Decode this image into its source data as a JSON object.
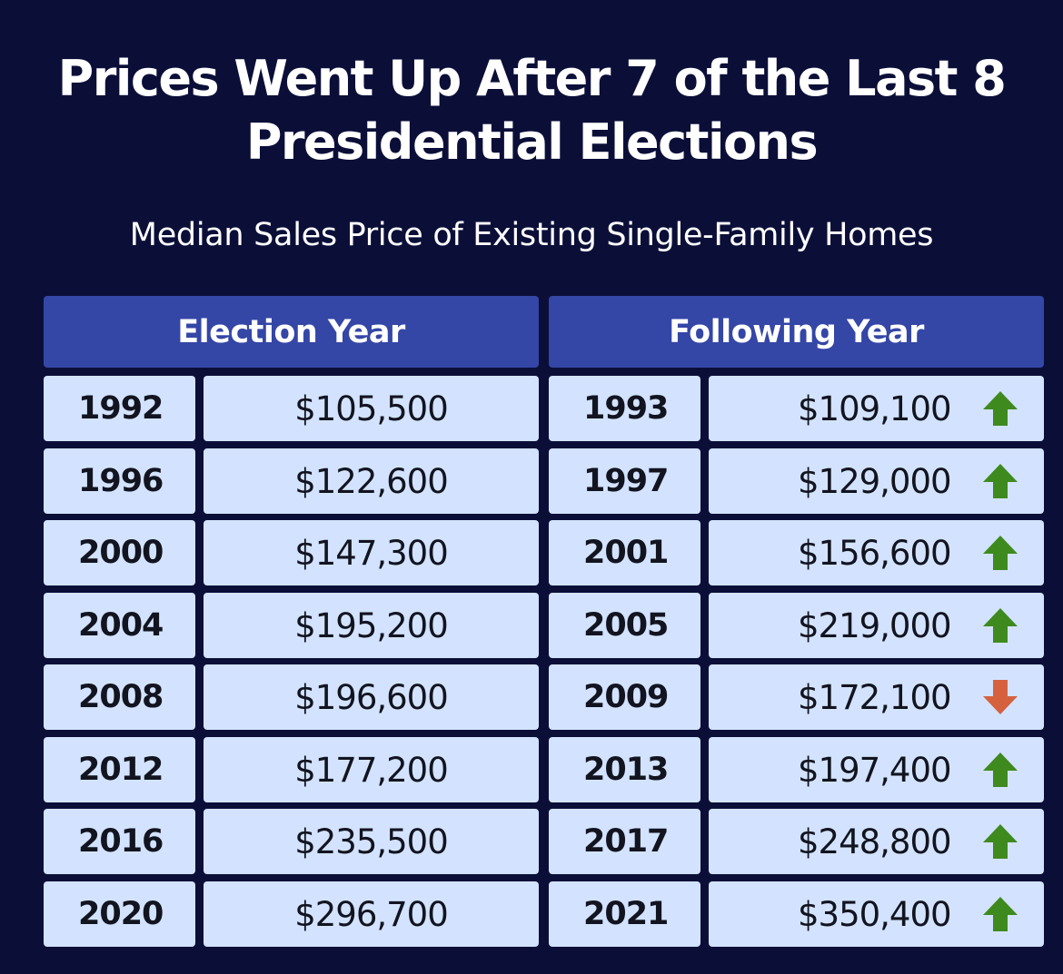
{
  "chart_data": {
    "type": "table",
    "title": "Prices Went Up After 7 of the Last 8 Presidential Elections",
    "title_lines": [
      "Prices Went Up After 7 of the Last 8",
      "Presidential Elections"
    ],
    "subtitle": "Median Sales Price of Existing Single-Family Homes",
    "columns": [
      "Election Year",
      "Following Year"
    ],
    "rows": [
      {
        "election_year": "1992",
        "election_price": "$105,500",
        "following_year": "1993",
        "following_price": "$109,100",
        "change": "up"
      },
      {
        "election_year": "1996",
        "election_price": "$122,600",
        "following_year": "1997",
        "following_price": "$129,000",
        "change": "up"
      },
      {
        "election_year": "2000",
        "election_price": "$147,300",
        "following_year": "2001",
        "following_price": "$156,600",
        "change": "up"
      },
      {
        "election_year": "2004",
        "election_price": "$195,200",
        "following_year": "2005",
        "following_price": "$219,000",
        "change": "up"
      },
      {
        "election_year": "2008",
        "election_price": "$196,600",
        "following_year": "2009",
        "following_price": "$172,100",
        "change": "down"
      },
      {
        "election_year": "2012",
        "election_price": "$177,200",
        "following_year": "2013",
        "following_price": "$197,400",
        "change": "up"
      },
      {
        "election_year": "2016",
        "election_price": "$235,500",
        "following_year": "2017",
        "following_price": "$248,800",
        "change": "up"
      },
      {
        "election_year": "2020",
        "election_price": "$296,700",
        "following_year": "2021",
        "following_price": "$350,400",
        "change": "up"
      }
    ],
    "values": {
      "election_year": [
        105500,
        122600,
        147300,
        195200,
        196600,
        177200,
        235500,
        296700
      ],
      "following_year": [
        109100,
        129000,
        156600,
        219000,
        172100,
        197400,
        248800,
        350400
      ]
    }
  },
  "colors": {
    "background": "#0b0f38",
    "header": "#3446a6",
    "cell": "#d3e3ff",
    "up": "#3f8a1e",
    "down": "#d5613f",
    "text_light": "#ffffff",
    "text_dark": "#12141f"
  },
  "icons": {
    "up": "arrow-up-icon",
    "down": "arrow-down-icon"
  }
}
